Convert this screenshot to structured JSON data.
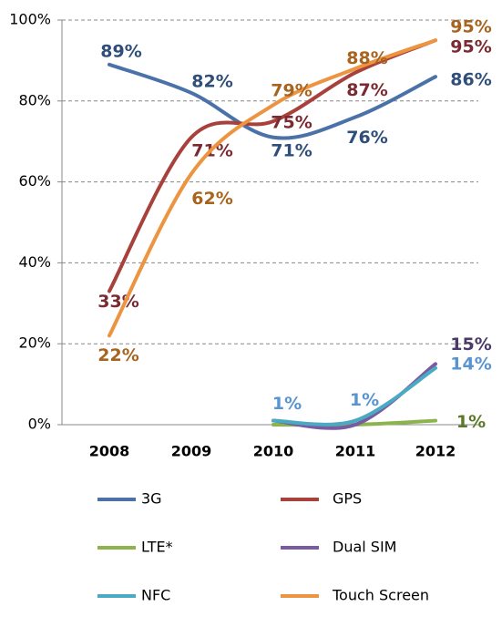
{
  "chart_data": {
    "type": "line",
    "categories": [
      "2008",
      "2009",
      "2010",
      "2011",
      "2012"
    ],
    "series": [
      {
        "name": "3G",
        "color": "#4a72a8",
        "label_color": "#2f4f7a",
        "values": [
          89,
          82,
          71,
          76,
          86
        ],
        "value_labels": [
          "89%",
          "82%",
          "71%",
          "76%",
          "86%"
        ]
      },
      {
        "name": "GPS",
        "color": "#a8403c",
        "label_color": "#7a2a30",
        "values": [
          33,
          71,
          75,
          87,
          95
        ],
        "value_labels": [
          "33%",
          "71%",
          "75%",
          "87%",
          "95%"
        ]
      },
      {
        "name": "LTE*",
        "color": "#8cb44c",
        "label_color": "#5a7a2a",
        "values": [
          null,
          null,
          0,
          0,
          1
        ],
        "value_labels": [
          null,
          null,
          null,
          null,
          "1%"
        ]
      },
      {
        "name": "Dual SIM",
        "color": "#7a5aa0",
        "label_color": "#4a3a6a",
        "values": [
          null,
          null,
          1,
          0,
          15
        ],
        "value_labels": [
          null,
          null,
          null,
          null,
          "15%"
        ]
      },
      {
        "name": "NFC",
        "color": "#4aaac4",
        "label_color": "#5a94d0",
        "values": [
          null,
          null,
          1,
          1,
          14
        ],
        "value_labels": [
          null,
          null,
          "1%",
          "1%",
          "14%"
        ]
      },
      {
        "name": "Touch Screen",
        "color": "#ec9440",
        "label_color": "#a8641e",
        "values": [
          22,
          62,
          79,
          88,
          95
        ],
        "value_labels": [
          "22%",
          "62%",
          "79%",
          "88%",
          "95%"
        ]
      }
    ],
    "ylim": [
      0,
      100
    ],
    "yticks": [
      {
        "value": 0,
        "label": "0%"
      },
      {
        "value": 20,
        "label": "20%"
      },
      {
        "value": 40,
        "label": "40%"
      },
      {
        "value": 60,
        "label": "60%"
      },
      {
        "value": 80,
        "label": "80%"
      },
      {
        "value": 100,
        "label": "100%"
      }
    ],
    "grid": true
  }
}
